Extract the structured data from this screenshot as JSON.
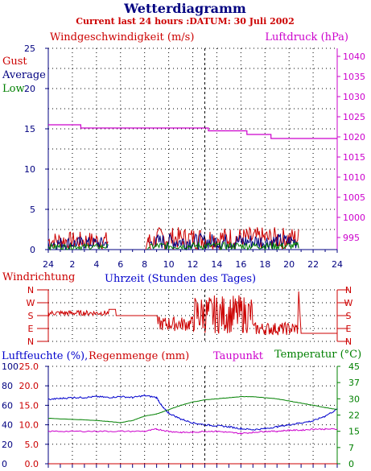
{
  "title": "Wetterdiagramm",
  "subtitle": "Current last 24 hours :DATUM: 30 Juli 2002",
  "colors": {
    "navy": "#000080",
    "red": "#cc0000",
    "magenta": "#cc00cc",
    "green": "#008000",
    "blue": "#0000cc",
    "grid": "#000000"
  },
  "chart_data": [
    {
      "id": "wind",
      "type": "line",
      "title": "Windgeschwindigkeit (m/s)",
      "right_title": "Luftdruck (hPa)",
      "xlabel": "Uhrzeit (Stunden des Tages)",
      "legend": [
        "Gust",
        "Average",
        "Low"
      ],
      "left_axis": {
        "range": [
          0,
          25
        ],
        "ticks": [
          "0",
          "5",
          "10",
          "15",
          "20",
          "25"
        ]
      },
      "right_axis": {
        "range": [
          992,
          1042
        ],
        "ticks": [
          "995",
          "1000",
          "1005",
          "1010",
          "1015",
          "1020",
          "1025",
          "1030",
          "1035",
          "1040"
        ]
      },
      "x_ticks": [
        "24",
        "2",
        "4",
        "6",
        "8",
        "10",
        "12",
        "14",
        "16",
        "18",
        "20",
        "22",
        "24"
      ],
      "now_marker_hour": 13,
      "pressure_steps": [
        {
          "from": 0,
          "to": 2.7,
          "hpa": 1023
        },
        {
          "from": 2.7,
          "to": 13.3,
          "hpa": 1022.2
        },
        {
          "from": 13.3,
          "to": 16.5,
          "hpa": 1021.5
        },
        {
          "from": 16.5,
          "to": 18.5,
          "hpa": 1020.6
        },
        {
          "from": 18.5,
          "to": 24,
          "hpa": 1019.6
        }
      ],
      "gaps": [
        [
          5,
          8.2
        ],
        [
          20.8,
          24
        ]
      ]
    },
    {
      "id": "direction",
      "type": "line",
      "title": "Windrichtung",
      "xlabel": "",
      "directions": [
        "N",
        "W",
        "S",
        "E",
        "N"
      ],
      "now_marker_hour": 13
    },
    {
      "id": "humidity",
      "type": "line",
      "title": "Luftfeuchte (%),",
      "title2": "Regenmenge (mm)",
      "title3": "Taupunkt",
      "title4": "Temperatur (°C)",
      "left_ticks_a": [
        "0",
        "20",
        "40",
        "60",
        "80",
        "100"
      ],
      "left_ticks_b": [
        "0.0",
        "5.0",
        "10.0",
        "15.0",
        "20.0",
        "25.0"
      ],
      "right_ticks": [
        "0",
        "7",
        "15",
        "22",
        "30",
        "37",
        "45"
      ],
      "now_marker_hour": 13,
      "humidity_pct": [
        [
          0,
          66
        ],
        [
          1,
          67
        ],
        [
          2,
          68
        ],
        [
          3,
          68
        ],
        [
          4,
          69
        ],
        [
          5,
          68
        ],
        [
          6,
          69
        ],
        [
          7,
          68
        ],
        [
          8,
          70
        ],
        [
          9,
          68
        ],
        [
          9.5,
          58
        ],
        [
          10,
          52
        ],
        [
          11,
          46
        ],
        [
          12,
          42
        ],
        [
          13,
          40
        ],
        [
          14,
          39
        ],
        [
          15,
          38
        ],
        [
          16,
          36
        ],
        [
          17,
          35
        ],
        [
          18,
          36
        ],
        [
          19,
          38
        ],
        [
          20,
          40
        ],
        [
          21,
          42
        ],
        [
          22,
          44
        ],
        [
          23,
          49
        ],
        [
          24,
          56
        ]
      ],
      "temperature_c": [
        [
          0,
          21
        ],
        [
          2,
          20.5
        ],
        [
          4,
          20
        ],
        [
          5,
          19.5
        ],
        [
          6,
          19
        ],
        [
          7,
          20
        ],
        [
          8,
          22
        ],
        [
          9,
          23
        ],
        [
          10,
          25
        ],
        [
          11,
          27
        ],
        [
          12,
          28.5
        ],
        [
          13,
          29.5
        ],
        [
          14,
          30
        ],
        [
          15,
          30.5
        ],
        [
          16,
          31
        ],
        [
          17,
          31
        ],
        [
          18,
          30.5
        ],
        [
          19,
          30
        ],
        [
          20,
          29
        ],
        [
          21,
          28
        ],
        [
          22,
          27
        ],
        [
          23,
          26
        ],
        [
          24,
          25
        ]
      ],
      "dewpoint_c": [
        [
          0,
          15
        ],
        [
          2,
          15
        ],
        [
          4,
          15
        ],
        [
          6,
          15
        ],
        [
          8,
          15
        ],
        [
          9,
          16
        ],
        [
          10,
          15
        ],
        [
          11,
          14.5
        ],
        [
          12,
          14.5
        ],
        [
          13,
          15
        ],
        [
          14,
          15
        ],
        [
          15,
          14.5
        ],
        [
          16,
          14
        ],
        [
          17,
          14.5
        ],
        [
          18,
          15
        ],
        [
          19,
          15
        ],
        [
          20,
          15.5
        ],
        [
          21,
          15.5
        ],
        [
          22,
          16
        ],
        [
          23,
          16
        ],
        [
          24,
          16
        ]
      ]
    }
  ]
}
